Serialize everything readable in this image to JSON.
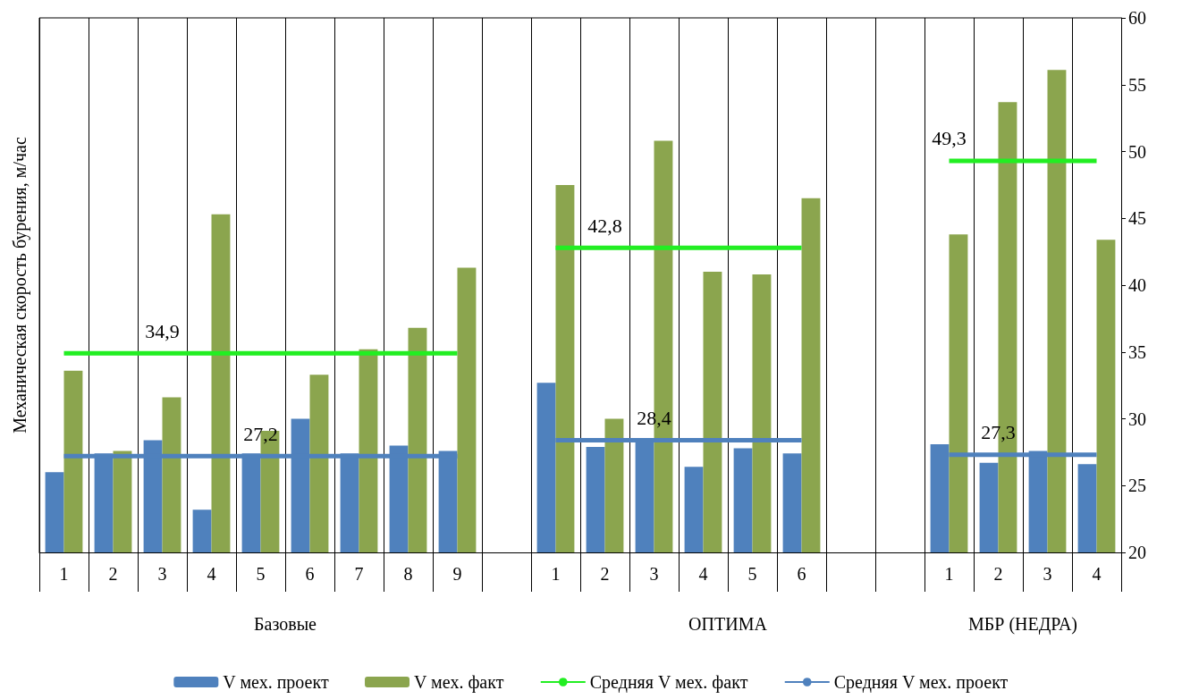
{
  "chart_data": {
    "type": "bar",
    "ylabel": "Механическая скорость бурения, м/час",
    "categories": [
      "1",
      "2",
      "3",
      "4",
      "5",
      "6",
      "7",
      "8",
      "9",
      null,
      "1",
      "2",
      "3",
      "4",
      "5",
      "6",
      null,
      null,
      "1",
      "2",
      "3",
      "4"
    ],
    "annotations": [
      "Базовые",
      "ОПТИМА",
      "МБР (НЕДРА)"
    ],
    "series": [
      {
        "name": "V мех. проект",
        "color": "#4f81bd",
        "values": [
          26.0,
          27.4,
          28.4,
          23.2,
          27.4,
          30.0,
          27.4,
          28.0,
          27.6,
          null,
          32.7,
          27.9,
          28.5,
          26.4,
          27.8,
          27.4,
          null,
          null,
          28.1,
          26.7,
          27.6,
          26.6
        ]
      },
      {
        "name": "V мех. факт",
        "color": "#8ba54e",
        "values": [
          33.6,
          27.6,
          31.6,
          45.3,
          29.1,
          33.3,
          35.2,
          36.8,
          41.3,
          null,
          47.5,
          30.0,
          50.8,
          41.0,
          40.8,
          46.5,
          null,
          null,
          43.8,
          53.7,
          56.1,
          43.4
        ]
      },
      {
        "name": "Средняя V мех. факт",
        "type": "line",
        "color": "#22ee22",
        "values": [
          34.9,
          34.9,
          34.9,
          34.9,
          34.9,
          34.9,
          34.9,
          34.9,
          34.9,
          null,
          42.8,
          42.8,
          42.8,
          42.8,
          42.8,
          42.8,
          null,
          null,
          49.3,
          49.3,
          49.3,
          49.3
        ],
        "value_labels": [
          null,
          null,
          "34,9",
          null,
          null,
          null,
          null,
          null,
          null,
          null,
          null,
          "42,8",
          null,
          null,
          null,
          null,
          null,
          null,
          "49,3",
          null,
          null,
          null
        ]
      },
      {
        "name": "Средняя V мех. проект",
        "type": "line",
        "color": "#4f81bd",
        "values": [
          27.2,
          27.2,
          27.2,
          27.2,
          27.2,
          27.2,
          27.2,
          27.2,
          27.2,
          null,
          28.4,
          28.4,
          28.4,
          28.4,
          28.4,
          28.4,
          null,
          null,
          27.3,
          27.3,
          27.3,
          27.3
        ],
        "value_labels": [
          null,
          null,
          null,
          null,
          "27,2",
          null,
          null,
          null,
          null,
          null,
          null,
          null,
          "28,4",
          null,
          null,
          null,
          null,
          null,
          null,
          "27,3",
          null,
          null
        ]
      }
    ],
    "ylim": [
      20,
      60
    ],
    "yticks": [
      20,
      25,
      30,
      35,
      40,
      45,
      50,
      55,
      60
    ],
    "grid": "x",
    "legend": "bottom",
    "marker": "none",
    "line_style": "solid"
  }
}
